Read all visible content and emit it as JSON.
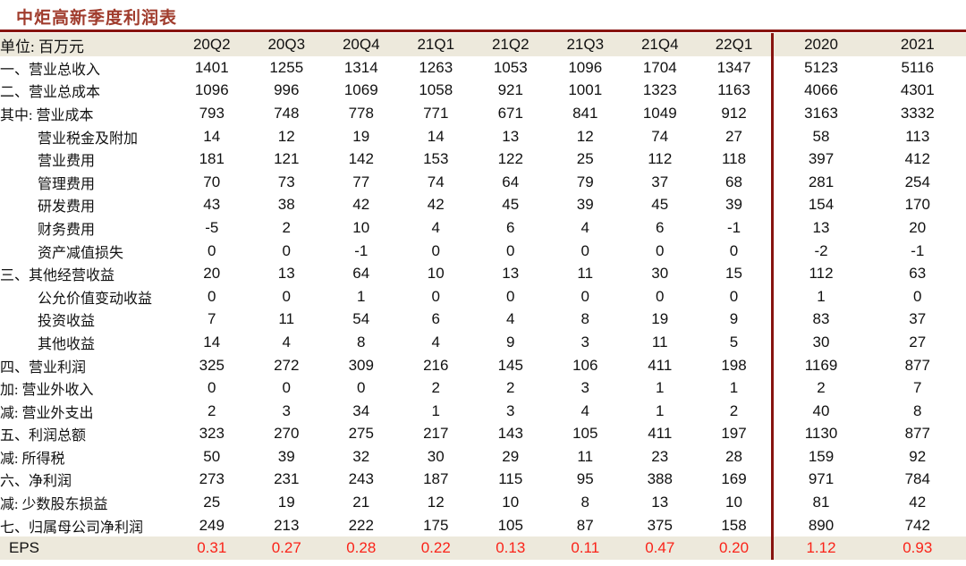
{
  "title": "中炬高新季度利润表",
  "colors": {
    "title_red": "#A03C2D",
    "rule_red": "#871410",
    "band_beige": "#EDE9DC",
    "value_red": "#FA2319",
    "text_black": "#111111"
  },
  "chart_data": {
    "type": "table",
    "title": "中炬高新季度利润表",
    "unit_label": "单位: 百万元",
    "quarter_columns": [
      "20Q2",
      "20Q3",
      "20Q4",
      "21Q1",
      "21Q2",
      "21Q3",
      "21Q4",
      "22Q1"
    ],
    "year_columns": [
      "2020",
      "2021"
    ],
    "rows": [
      {
        "label": "一、营业总收入",
        "indent": 0,
        "values": [
          "1401",
          "1255",
          "1314",
          "1263",
          "1053",
          "1096",
          "1704",
          "1347"
        ],
        "years": [
          "5123",
          "5116"
        ]
      },
      {
        "label": "二、营业总成本",
        "indent": 0,
        "values": [
          "1096",
          "996",
          "1069",
          "1058",
          "921",
          "1001",
          "1323",
          "1163"
        ],
        "years": [
          "4066",
          "4301"
        ]
      },
      {
        "label": "其中: 营业成本",
        "indent": 0,
        "values": [
          "793",
          "748",
          "778",
          "771",
          "671",
          "841",
          "1049",
          "912"
        ],
        "years": [
          "3163",
          "3332"
        ]
      },
      {
        "label": "营业税金及附加",
        "indent": 1,
        "values": [
          "14",
          "12",
          "19",
          "14",
          "13",
          "12",
          "74",
          "27"
        ],
        "years": [
          "58",
          "113"
        ]
      },
      {
        "label": "营业费用",
        "indent": 1,
        "values": [
          "181",
          "121",
          "142",
          "153",
          "122",
          "25",
          "112",
          "118"
        ],
        "years": [
          "397",
          "412"
        ]
      },
      {
        "label": "管理费用",
        "indent": 1,
        "values": [
          "70",
          "73",
          "77",
          "74",
          "64",
          "79",
          "37",
          "68"
        ],
        "years": [
          "281",
          "254"
        ]
      },
      {
        "label": "研发费用",
        "indent": 1,
        "values": [
          "43",
          "38",
          "42",
          "42",
          "45",
          "39",
          "45",
          "39"
        ],
        "years": [
          "154",
          "170"
        ]
      },
      {
        "label": "财务费用",
        "indent": 1,
        "values": [
          "-5",
          "2",
          "10",
          "4",
          "6",
          "4",
          "6",
          "-1"
        ],
        "years": [
          "13",
          "20"
        ]
      },
      {
        "label": "资产减值损失",
        "indent": 1,
        "values": [
          "0",
          "0",
          "-1",
          "0",
          "0",
          "0",
          "0",
          "0"
        ],
        "years": [
          "-2",
          "-1"
        ]
      },
      {
        "label": "三、其他经营收益",
        "indent": 0,
        "values": [
          "20",
          "13",
          "64",
          "10",
          "13",
          "11",
          "30",
          "15"
        ],
        "years": [
          "112",
          "63"
        ]
      },
      {
        "label": "公允价值变动收益",
        "indent": 1,
        "values": [
          "0",
          "0",
          "1",
          "0",
          "0",
          "0",
          "0",
          "0"
        ],
        "years": [
          "1",
          "0"
        ]
      },
      {
        "label": "投资收益",
        "indent": 1,
        "values": [
          "7",
          "11",
          "54",
          "6",
          "4",
          "8",
          "19",
          "9"
        ],
        "years": [
          "83",
          "37"
        ]
      },
      {
        "label": "其他收益",
        "indent": 1,
        "values": [
          "14",
          "4",
          "8",
          "4",
          "9",
          "3",
          "11",
          "5"
        ],
        "years": [
          "30",
          "27"
        ]
      },
      {
        "label": "四、营业利润",
        "indent": 0,
        "values": [
          "325",
          "272",
          "309",
          "216",
          "145",
          "106",
          "411",
          "198"
        ],
        "years": [
          "1169",
          "877"
        ]
      },
      {
        "label": "加: 营业外收入",
        "indent": 0,
        "values": [
          "0",
          "0",
          "0",
          "2",
          "2",
          "3",
          "1",
          "1"
        ],
        "years": [
          "2",
          "7"
        ]
      },
      {
        "label": "减: 营业外支出",
        "indent": 0,
        "values": [
          "2",
          "3",
          "34",
          "1",
          "3",
          "4",
          "1",
          "2"
        ],
        "years": [
          "40",
          "8"
        ]
      },
      {
        "label": "五、利润总额",
        "indent": 0,
        "values": [
          "323",
          "270",
          "275",
          "217",
          "143",
          "105",
          "411",
          "197"
        ],
        "years": [
          "1130",
          "877"
        ]
      },
      {
        "label": "减: 所得税",
        "indent": 0,
        "values": [
          "50",
          "39",
          "32",
          "30",
          "29",
          "11",
          "23",
          "28"
        ],
        "years": [
          "159",
          "92"
        ]
      },
      {
        "label": "六、净利润",
        "indent": 0,
        "values": [
          "273",
          "231",
          "243",
          "187",
          "115",
          "95",
          "388",
          "169"
        ],
        "years": [
          "971",
          "784"
        ]
      },
      {
        "label": "减: 少数股东损益",
        "indent": 0,
        "values": [
          "25",
          "19",
          "21",
          "12",
          "10",
          "8",
          "13",
          "10"
        ],
        "years": [
          "81",
          "42"
        ]
      },
      {
        "label": "七、归属母公司净利润",
        "indent": 0,
        "values": [
          "249",
          "213",
          "222",
          "175",
          "105",
          "87",
          "375",
          "158"
        ],
        "years": [
          "890",
          "742"
        ]
      },
      {
        "label": "EPS",
        "indent": 0,
        "latin": true,
        "highlight": true,
        "red_values": true,
        "values": [
          "0.31",
          "0.27",
          "0.28",
          "0.22",
          "0.13",
          "0.11",
          "0.47",
          "0.20"
        ],
        "years": [
          "1.12",
          "0.93"
        ]
      }
    ]
  }
}
